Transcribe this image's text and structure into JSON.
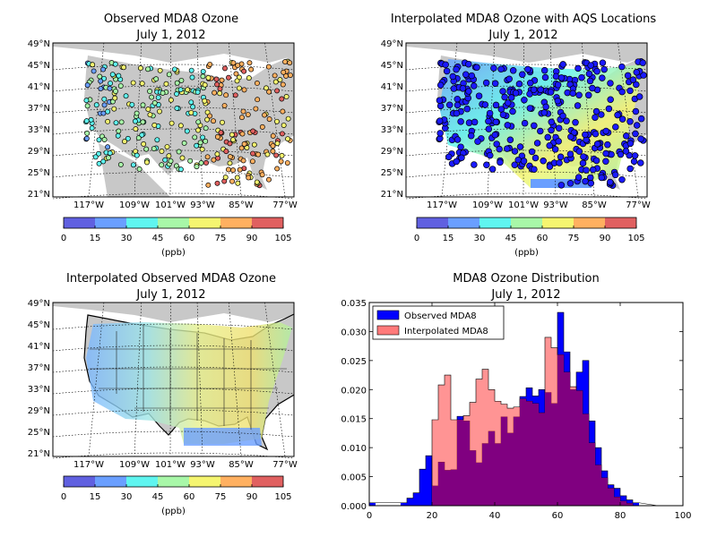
{
  "colors": {
    "land": "#c8c8c8",
    "observed": "#0000ff",
    "interpolated": "#ff7a7a",
    "overlap": "#800080",
    "colormap": [
      "#6060e0",
      "#6a9fff",
      "#5ff5f0",
      "#a8f7a8",
      "#f5f570",
      "#ffb060",
      "#e06060"
    ]
  },
  "icons": [
    "us-outline-map",
    "legend-swatch"
  ],
  "panels": [
    {
      "id": "observed",
      "title_line1": "Observed MDA8 Ozone",
      "title_line2": "July 1, 2012",
      "lat_labels": [
        "49°N",
        "45°N",
        "41°N",
        "37°N",
        "33°N",
        "29°N",
        "25°N",
        "21°N"
      ],
      "lon_labels": [
        "117°W",
        "109°W",
        "101°W",
        "93°W",
        "85°W",
        "77°W"
      ],
      "colorbar_ticks": [
        "0",
        "15",
        "30",
        "45",
        "60",
        "75",
        "90",
        "105"
      ],
      "colorbar_label": "(ppb)"
    },
    {
      "id": "interp-aqs",
      "title_line1": "Interpolated MDA8 Ozone with AQS Locations",
      "title_line2": "July 1, 2012",
      "lat_labels": [
        "49°N",
        "45°N",
        "41°N",
        "37°N",
        "33°N",
        "29°N",
        "25°N",
        "21°N"
      ],
      "lon_labels": [
        "117°W",
        "109°W",
        "101°W",
        "93°W",
        "85°W",
        "77°W"
      ],
      "colorbar_ticks": [
        "0",
        "15",
        "30",
        "45",
        "60",
        "75",
        "90",
        "105"
      ],
      "colorbar_label": "(ppb)"
    },
    {
      "id": "interp-observed",
      "title_line1": "Interpolated Observed MDA8 Ozone",
      "title_line2": "July 1, 2012",
      "lat_labels": [
        "49°N",
        "45°N",
        "41°N",
        "37°N",
        "33°N",
        "29°N",
        "25°N",
        "21°N"
      ],
      "lon_labels": [
        "117°W",
        "109°W",
        "101°W",
        "93°W",
        "85°W",
        "77°W"
      ],
      "colorbar_ticks": [
        "0",
        "15",
        "30",
        "45",
        "60",
        "75",
        "90",
        "105"
      ],
      "colorbar_label": "(ppb)"
    }
  ],
  "chart_data": {
    "type": "histogram",
    "title_line1": "MDA8 Ozone Distribution",
    "title_line2": "July 1, 2012",
    "xlim": [
      0,
      100
    ],
    "ylim": [
      0,
      0.035
    ],
    "x_ticks": [
      "0",
      "20",
      "40",
      "60",
      "80",
      "100"
    ],
    "y_ticks": [
      "0.000",
      "0.005",
      "0.010",
      "0.015",
      "0.020",
      "0.025",
      "0.030",
      "0.035"
    ],
    "bin_width": 2,
    "series": [
      {
        "name": "Observed MDA8",
        "bins": [
          [
            0,
            0.0005
          ],
          [
            10,
            0.0005
          ],
          [
            12,
            0.0013
          ],
          [
            14,
            0.0022
          ],
          [
            16,
            0.0063
          ],
          [
            18,
            0.0086
          ],
          [
            20,
            0.0034
          ],
          [
            22,
            0.0075
          ],
          [
            24,
            0.0061
          ],
          [
            26,
            0.0062
          ],
          [
            28,
            0.0154
          ],
          [
            30,
            0.0146
          ],
          [
            32,
            0.0095
          ],
          [
            34,
            0.0074
          ],
          [
            36,
            0.0107
          ],
          [
            38,
            0.0128
          ],
          [
            40,
            0.0107
          ],
          [
            42,
            0.0153
          ],
          [
            44,
            0.0125
          ],
          [
            46,
            0.0153
          ],
          [
            48,
            0.0188
          ],
          [
            50,
            0.0203
          ],
          [
            52,
            0.0189
          ],
          [
            54,
            0.02
          ],
          [
            56,
            0.0195
          ],
          [
            58,
            0.0176
          ],
          [
            60,
            0.0333
          ],
          [
            62,
            0.0265
          ],
          [
            64,
            0.02
          ],
          [
            66,
            0.023
          ],
          [
            68,
            0.025
          ],
          [
            70,
            0.0146
          ],
          [
            72,
            0.01
          ],
          [
            74,
            0.006
          ],
          [
            76,
            0.0036
          ],
          [
            78,
            0.003
          ],
          [
            80,
            0.0017
          ],
          [
            82,
            0.001
          ],
          [
            84,
            0.0005
          ],
          [
            92,
            0
          ]
        ]
      },
      {
        "name": "Interpolated MDA8",
        "bins": [
          [
            20,
            0.0148
          ],
          [
            22,
            0.0208
          ],
          [
            24,
            0.0225
          ],
          [
            26,
            0.0148
          ],
          [
            28,
            0.0148
          ],
          [
            30,
            0.0155
          ],
          [
            32,
            0.0178
          ],
          [
            34,
            0.0218
          ],
          [
            36,
            0.0235
          ],
          [
            38,
            0.02
          ],
          [
            40,
            0.018
          ],
          [
            42,
            0.0175
          ],
          [
            44,
            0.0168
          ],
          [
            46,
            0.017
          ],
          [
            48,
            0.0184
          ],
          [
            50,
            0.018
          ],
          [
            52,
            0.0176
          ],
          [
            54,
            0.016
          ],
          [
            56,
            0.029
          ],
          [
            58,
            0.0272
          ],
          [
            60,
            0.026
          ],
          [
            62,
            0.023
          ],
          [
            64,
            0.0205
          ],
          [
            66,
            0.0198
          ],
          [
            68,
            0.0158
          ],
          [
            70,
            0.0108
          ],
          [
            72,
            0.007
          ],
          [
            74,
            0.0048
          ],
          [
            76,
            0.003
          ],
          [
            78,
            0.0015
          ],
          [
            80,
            0.0008
          ],
          [
            82,
            0.0004
          ]
        ]
      }
    ]
  }
}
